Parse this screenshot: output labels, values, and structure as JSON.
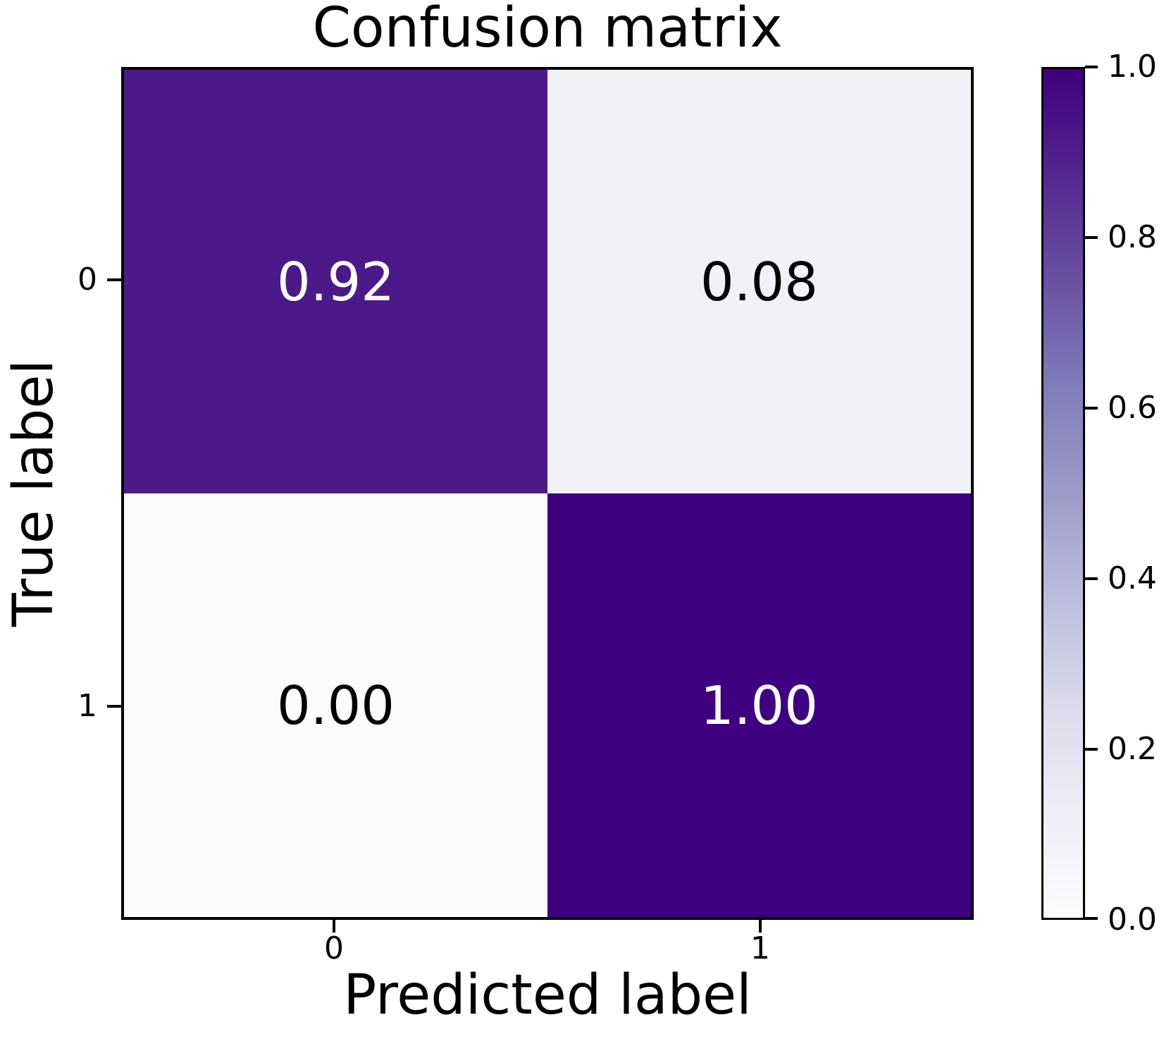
{
  "figure": {
    "background": "#ffffff",
    "spine_color": "#000000"
  },
  "chart_data": {
    "type": "heatmap",
    "title": "Confusion matrix",
    "xlabel": "Predicted label",
    "ylabel": "True label",
    "x_tick_labels": [
      "0",
      "1"
    ],
    "y_tick_labels": [
      "0",
      "1"
    ],
    "matrix_values": [
      [
        0.92,
        0.08
      ],
      [
        0.0,
        1.0
      ]
    ],
    "cells": [
      {
        "row": "0",
        "col": "0",
        "value": 0.92,
        "label": "0.92",
        "bg": "#4c1a88",
        "fg": "#ffffff"
      },
      {
        "row": "0",
        "col": "1",
        "value": 0.08,
        "label": "0.08",
        "bg": "#f2f1f7",
        "fg": "#000000"
      },
      {
        "row": "1",
        "col": "0",
        "value": 0.0,
        "label": "0.00",
        "bg": "#fcfbfd",
        "fg": "#000000"
      },
      {
        "row": "1",
        "col": "1",
        "value": 1.0,
        "label": "1.00",
        "bg": "#3e0080",
        "fg": "#ffffff"
      }
    ],
    "colormap": "Purples",
    "value_range": [
      0.0,
      1.0
    ],
    "grid": false,
    "colorbar": {
      "position": "right",
      "min": 0.0,
      "max": 1.0,
      "ticks": [
        "1.0",
        "0.8",
        "0.6",
        "0.4",
        "0.2",
        "0.0"
      ],
      "gradient_top_to_bottom": [
        "#3f007d",
        "#54278f",
        "#6a51a3",
        "#807dba",
        "#9e9ac8",
        "#bcbddc",
        "#dadaeb",
        "#efedf5",
        "#fcfbfd"
      ]
    }
  }
}
